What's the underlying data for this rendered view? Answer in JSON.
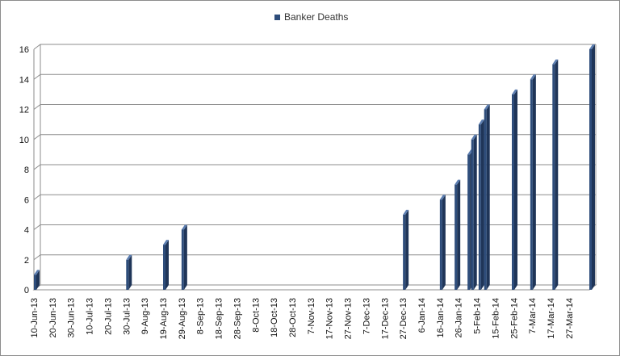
{
  "chart_data": {
    "type": "bar",
    "title": "",
    "xlabel": "",
    "ylabel": "",
    "ylim": [
      0,
      16
    ],
    "yticks": [
      0,
      2,
      4,
      6,
      8,
      10,
      12,
      14,
      16
    ],
    "grid": true,
    "legend_position": "top",
    "series": [
      {
        "name": "Banker Deaths",
        "color": "#2e4d7b",
        "points": [
          {
            "date": "2013-06-10",
            "value": 1
          },
          {
            "date": "2013-07-30",
            "value": 2
          },
          {
            "date": "2013-08-19",
            "value": 3
          },
          {
            "date": "2013-08-29",
            "value": 4
          },
          {
            "date": "2013-12-27",
            "value": 5
          },
          {
            "date": "2014-01-16",
            "value": 6
          },
          {
            "date": "2014-01-24",
            "value": 7
          },
          {
            "date": "2014-01-31",
            "value": 9
          },
          {
            "date": "2014-02-02",
            "value": 10
          },
          {
            "date": "2014-02-06",
            "value": 11
          },
          {
            "date": "2014-02-09",
            "value": 12
          },
          {
            "date": "2014-02-24",
            "value": 13
          },
          {
            "date": "2014-03-06",
            "value": 14
          },
          {
            "date": "2014-03-18",
            "value": 15
          },
          {
            "date": "2014-04-07",
            "value": 16
          }
        ]
      }
    ],
    "x_tick_labels": [
      "10-Jun-13",
      "20-Jun-13",
      "30-Jun-13",
      "10-Jul-13",
      "20-Jul-13",
      "30-Jul-13",
      "9-Aug-13",
      "19-Aug-13",
      "29-Aug-13",
      "8-Sep-13",
      "18-Sep-13",
      "28-Sep-13",
      "8-Oct-13",
      "18-Oct-13",
      "28-Oct-13",
      "7-Nov-13",
      "17-Nov-13",
      "27-Nov-13",
      "7-Dec-13",
      "17-Dec-13",
      "27-Dec-13",
      "6-Jan-14",
      "16-Jan-14",
      "26-Jan-14",
      "5-Feb-14",
      "15-Feb-14",
      "25-Feb-14",
      "7-Mar-14",
      "17-Mar-14",
      "27-Mar-14"
    ]
  }
}
